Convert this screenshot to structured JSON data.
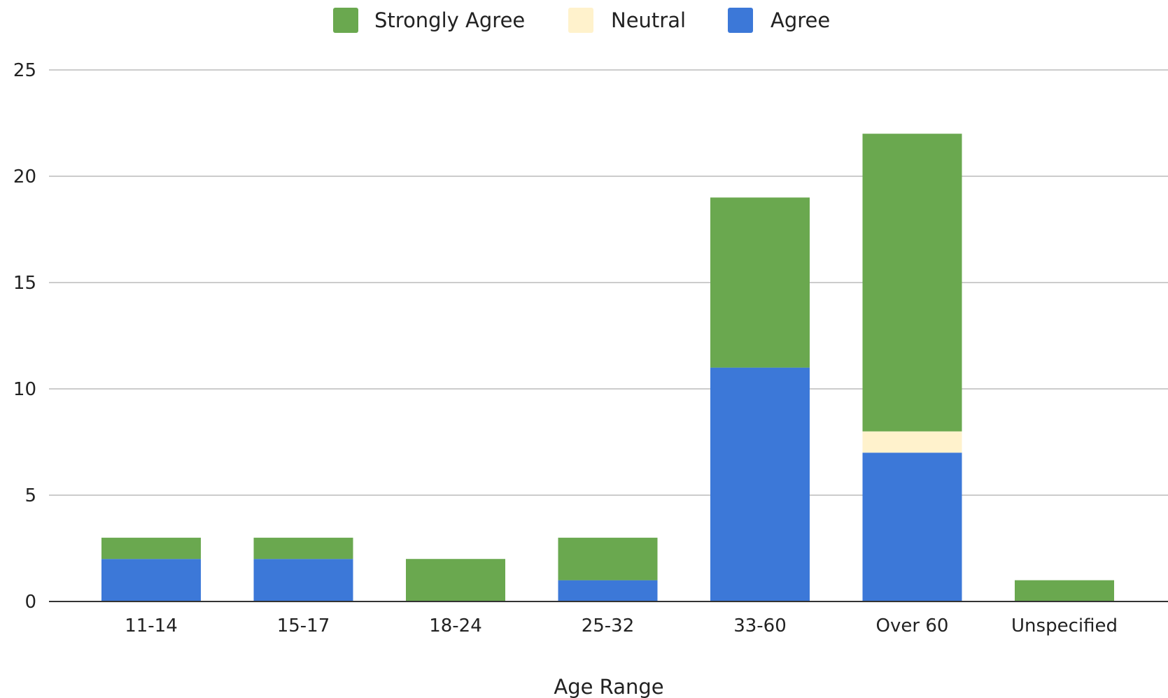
{
  "chart_data": {
    "type": "bar",
    "stacked": true,
    "title": "",
    "xlabel": "Age Range",
    "ylabel": "",
    "categories": [
      "11-14",
      "15-17",
      "18-24",
      "25-32",
      "33-60",
      "Over 60",
      "Unspecified"
    ],
    "series": [
      {
        "name": "Agree",
        "color": "#3c78d8",
        "values": [
          2,
          2,
          0,
          1,
          11,
          7,
          0
        ]
      },
      {
        "name": "Neutral",
        "color": "#fff2cc",
        "values": [
          0,
          0,
          0,
          0,
          0,
          1,
          0
        ]
      },
      {
        "name": "Strongly Agree",
        "color": "#6aa84f",
        "values": [
          1,
          1,
          2,
          2,
          8,
          14,
          1
        ]
      }
    ],
    "legend_order": [
      "Strongly Agree",
      "Neutral",
      "Agree"
    ],
    "legend_position": "top",
    "ylim": [
      0,
      25
    ],
    "yticks": [
      0,
      5,
      10,
      15,
      20,
      25
    ],
    "grid": true
  }
}
